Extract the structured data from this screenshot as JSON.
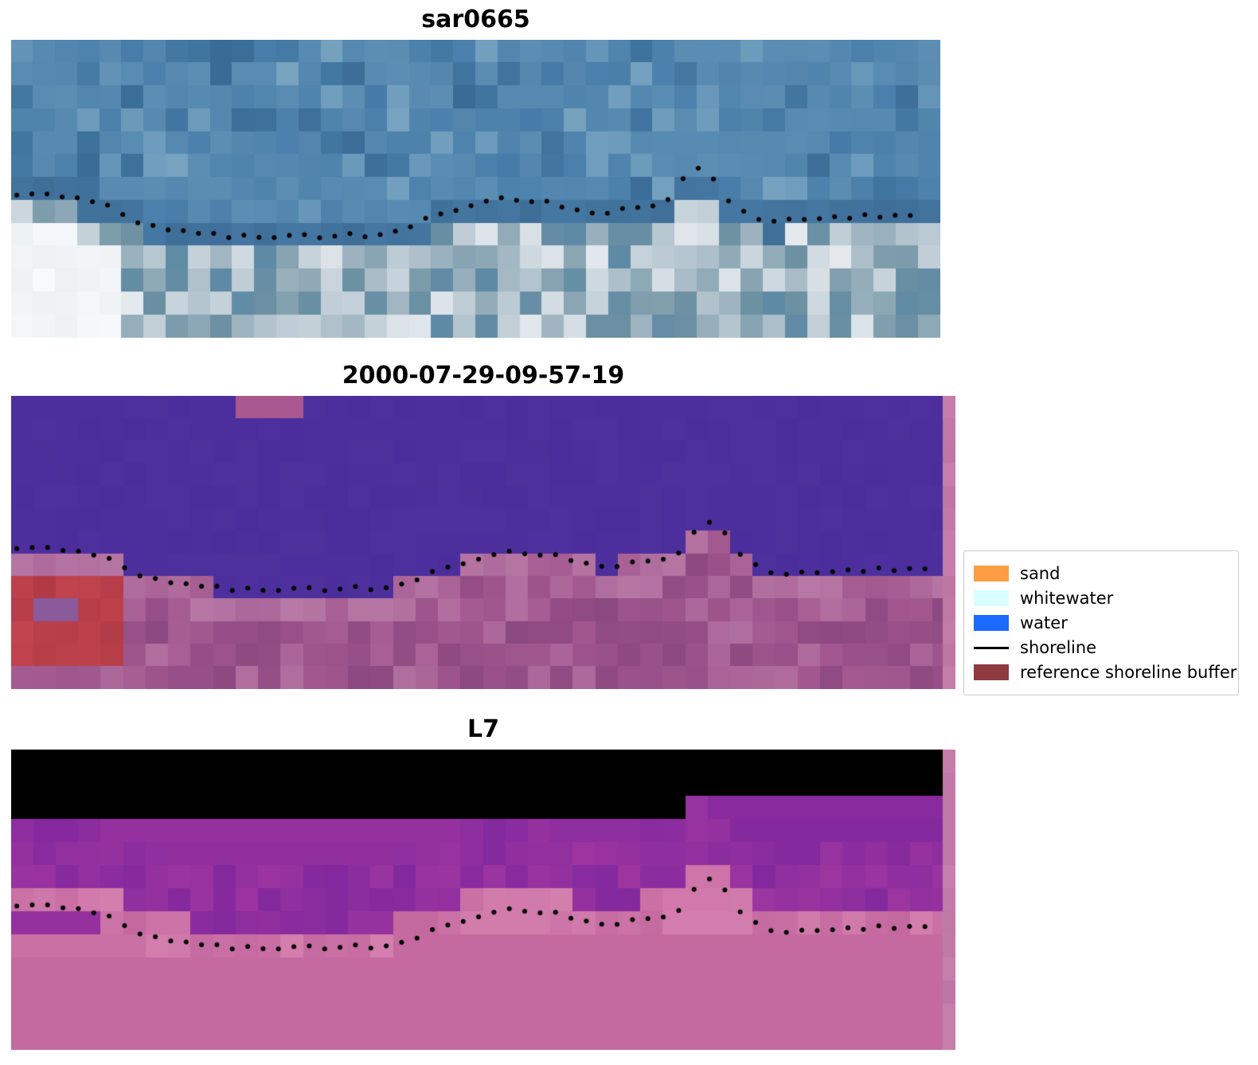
{
  "panels": [
    {
      "id": "sar0665",
      "title": "sar0665",
      "kind": "sar",
      "seed": 7,
      "strip": false,
      "palette": {
        "sea": "#4a80ab",
        "seaLight": "#7fa9c4",
        "seaDark": "#30628d",
        "shore": "#3f6f99",
        "landLight": "#e6ebef",
        "landMid": "#adbfca",
        "landDark": "#6f92a2",
        "white": "#f7fafc"
      }
    },
    {
      "id": "classification",
      "title": "2000-07-29-09-57-19",
      "kind": "class",
      "seed": 11,
      "strip": true,
      "palette": {
        "water": "#4b2e9b",
        "waterLight": "#5a3da8",
        "land": "#a2588f",
        "landDark": "#8c4880",
        "landLight": "#b778a5",
        "buffer": "#c2444e",
        "bufferDark": "#b03a46",
        "blob": "#8a5a9a",
        "topPatch": "#aa5890",
        "strip": "#c97fae"
      }
    },
    {
      "id": "l7",
      "title": "L7",
      "kind": "l7",
      "seed": 23,
      "strip": true,
      "palette": {
        "top": "#5a11a8",
        "mid": "#8c25a4",
        "magenta": "#9c35a0",
        "magentaDark": "#83289e",
        "pink": "#d47fae",
        "pinkDark": "#c468a0",
        "red": "#ce1244",
        "redDark": "#a60f3c",
        "strip": "#c97fae"
      }
    }
  ],
  "legend": {
    "items": [
      {
        "label": "sand",
        "swatch": "patch",
        "color": "#ff9d45"
      },
      {
        "label": "whitewater",
        "swatch": "patch",
        "color": "#d9ffff"
      },
      {
        "label": "water",
        "swatch": "patch",
        "color": "#1a6aff"
      },
      {
        "label": "shoreline",
        "swatch": "line",
        "color": "#000000"
      },
      {
        "label": "reference shoreline buffer",
        "swatch": "patch",
        "color": "#8e3a40"
      }
    ]
  },
  "shoreline": {
    "color": "#000000",
    "dot_radius": 3,
    "points": [
      [
        0.0,
        0.515
      ],
      [
        0.02,
        0.515
      ],
      [
        0.04,
        0.52
      ],
      [
        0.06,
        0.525
      ],
      [
        0.08,
        0.535
      ],
      [
        0.1,
        0.555
      ],
      [
        0.12,
        0.585
      ],
      [
        0.14,
        0.615
      ],
      [
        0.16,
        0.635
      ],
      [
        0.18,
        0.645
      ],
      [
        0.21,
        0.655
      ],
      [
        0.24,
        0.66
      ],
      [
        0.27,
        0.665
      ],
      [
        0.3,
        0.66
      ],
      [
        0.33,
        0.66
      ],
      [
        0.36,
        0.655
      ],
      [
        0.385,
        0.66
      ],
      [
        0.41,
        0.65
      ],
      [
        0.43,
        0.625
      ],
      [
        0.455,
        0.595
      ],
      [
        0.48,
        0.565
      ],
      [
        0.505,
        0.545
      ],
      [
        0.53,
        0.535
      ],
      [
        0.555,
        0.535
      ],
      [
        0.575,
        0.545
      ],
      [
        0.6,
        0.565
      ],
      [
        0.62,
        0.58
      ],
      [
        0.64,
        0.58
      ],
      [
        0.66,
        0.57
      ],
      [
        0.68,
        0.565
      ],
      [
        0.7,
        0.555
      ],
      [
        0.715,
        0.505
      ],
      [
        0.73,
        0.445
      ],
      [
        0.74,
        0.43
      ],
      [
        0.755,
        0.47
      ],
      [
        0.77,
        0.53
      ],
      [
        0.785,
        0.57
      ],
      [
        0.8,
        0.595
      ],
      [
        0.82,
        0.605
      ],
      [
        0.85,
        0.6
      ],
      [
        0.88,
        0.595
      ],
      [
        0.91,
        0.595
      ],
      [
        0.94,
        0.59
      ],
      [
        0.97,
        0.585
      ],
      [
        1.0,
        0.58
      ]
    ]
  },
  "chart_data": {
    "type": "image",
    "title": "",
    "panels": [
      {
        "title": "sar0665",
        "content": "SAR satellite image, sea above shoreline, bright land below"
      },
      {
        "title": "2000-07-29-09-57-19",
        "content": "classification map: purple water, magenta land, red reference shoreline buffer patch at left"
      },
      {
        "title": "L7",
        "content": "Landsat 7 false-color image: purple water, pink beach band, red land"
      }
    ],
    "legend_entries": [
      "sand",
      "whitewater",
      "water",
      "shoreline",
      "reference shoreline buffer"
    ],
    "overlay": {
      "name": "shoreline",
      "style": "dotted black line",
      "points_normalized": [
        [
          0.0,
          0.515
        ],
        [
          0.06,
          0.525
        ],
        [
          0.12,
          0.585
        ],
        [
          0.18,
          0.645
        ],
        [
          0.24,
          0.66
        ],
        [
          0.3,
          0.66
        ],
        [
          0.36,
          0.655
        ],
        [
          0.43,
          0.625
        ],
        [
          0.505,
          0.545
        ],
        [
          0.555,
          0.535
        ],
        [
          0.62,
          0.58
        ],
        [
          0.68,
          0.565
        ],
        [
          0.74,
          0.43
        ],
        [
          0.8,
          0.595
        ],
        [
          0.88,
          0.595
        ],
        [
          1.0,
          0.58
        ]
      ]
    }
  }
}
